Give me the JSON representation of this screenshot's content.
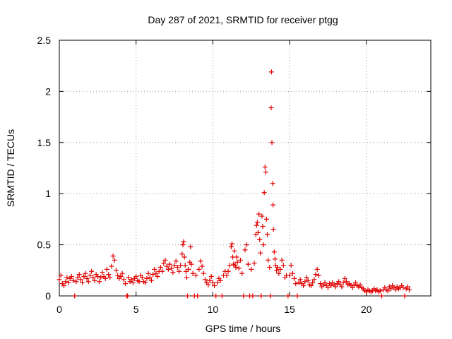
{
  "chart_data": {
    "type": "scatter",
    "title": "Day 287 of 2021, SRMTID for receiver ptgg",
    "xlabel": "GPS time / hours",
    "ylabel": "SRMTID / TECUs",
    "xlim": [
      0,
      24.2
    ],
    "ylim": [
      0,
      2.5
    ],
    "xticks": [
      0,
      5,
      10,
      15,
      20
    ],
    "xtick_labels": [
      "0",
      "5",
      "10",
      "15",
      "20"
    ],
    "yticks": [
      0,
      0.5,
      1,
      1.5,
      2,
      2.5
    ],
    "ytick_labels": [
      "0",
      "0.5",
      "1",
      "1.5",
      "2",
      "2.5"
    ],
    "grid": true,
    "marker": "+",
    "color": "#e00000",
    "series": [
      {
        "name": "SRMTID",
        "points": [
          [
            0.0,
            0.16
          ],
          [
            0.1,
            0.2
          ],
          [
            0.2,
            0.12
          ],
          [
            0.3,
            0.1
          ],
          [
            0.4,
            0.14
          ],
          [
            0.5,
            0.18
          ],
          [
            0.6,
            0.13
          ],
          [
            0.7,
            0.17
          ],
          [
            0.8,
            0.19
          ],
          [
            0.9,
            0.15
          ],
          [
            1.0,
            0.0
          ],
          [
            1.1,
            0.14
          ],
          [
            1.2,
            0.18
          ],
          [
            1.3,
            0.21
          ],
          [
            1.4,
            0.16
          ],
          [
            1.5,
            0.13
          ],
          [
            1.6,
            0.19
          ],
          [
            1.7,
            0.22
          ],
          [
            1.8,
            0.17
          ],
          [
            1.9,
            0.14
          ],
          [
            2.0,
            0.2
          ],
          [
            2.1,
            0.24
          ],
          [
            2.2,
            0.18
          ],
          [
            2.3,
            0.15
          ],
          [
            2.4,
            0.21
          ],
          [
            2.5,
            0.19
          ],
          [
            2.6,
            0.14
          ],
          [
            2.7,
            0.18
          ],
          [
            2.8,
            0.23
          ],
          [
            2.9,
            0.19
          ],
          [
            3.0,
            0.17
          ],
          [
            3.1,
            0.26
          ],
          [
            3.2,
            0.21
          ],
          [
            3.3,
            0.18
          ],
          [
            3.4,
            0.29
          ],
          [
            3.5,
            0.39
          ],
          [
            3.6,
            0.35
          ],
          [
            3.7,
            0.25
          ],
          [
            3.8,
            0.2
          ],
          [
            3.9,
            0.17
          ],
          [
            4.0,
            0.19
          ],
          [
            4.1,
            0.22
          ],
          [
            4.2,
            0.16
          ],
          [
            4.3,
            0.12
          ],
          [
            4.4,
            0.0
          ],
          [
            4.45,
            0.0
          ],
          [
            4.5,
            0.18
          ],
          [
            4.6,
            0.14
          ],
          [
            4.7,
            0.16
          ],
          [
            4.8,
            0.13
          ],
          [
            4.9,
            0.17
          ],
          [
            5.0,
            0.19
          ],
          [
            5.1,
            0.15
          ],
          [
            5.2,
            0.14
          ],
          [
            5.3,
            0.2
          ],
          [
            5.4,
            0.18
          ],
          [
            5.5,
            0.14
          ],
          [
            5.6,
            0.13
          ],
          [
            5.7,
            0.17
          ],
          [
            5.8,
            0.22
          ],
          [
            5.9,
            0.18
          ],
          [
            6.0,
            0.15
          ],
          [
            6.1,
            0.21
          ],
          [
            6.2,
            0.26
          ],
          [
            6.3,
            0.22
          ],
          [
            6.4,
            0.19
          ],
          [
            6.5,
            0.24
          ],
          [
            6.6,
            0.28
          ],
          [
            6.7,
            0.24
          ],
          [
            6.8,
            0.32
          ],
          [
            6.9,
            0.35
          ],
          [
            7.0,
            0.29
          ],
          [
            7.1,
            0.26
          ],
          [
            7.2,
            0.31
          ],
          [
            7.3,
            0.27
          ],
          [
            7.4,
            0.23
          ],
          [
            7.5,
            0.3
          ],
          [
            7.6,
            0.34
          ],
          [
            7.7,
            0.28
          ],
          [
            7.8,
            0.24
          ],
          [
            7.9,
            0.3
          ],
          [
            8.0,
            0.41
          ],
          [
            8.05,
            0.5
          ],
          [
            8.1,
            0.53
          ],
          [
            8.15,
            0.38
          ],
          [
            8.2,
            0.3
          ],
          [
            8.25,
            0.24
          ],
          [
            8.3,
            0.18
          ],
          [
            8.35,
            0.0
          ],
          [
            8.4,
            0.26
          ],
          [
            8.5,
            0.33
          ],
          [
            8.55,
            0.48
          ],
          [
            8.6,
            0.31
          ],
          [
            8.7,
            0.22
          ],
          [
            8.8,
            0.0
          ],
          [
            8.9,
            0.2
          ],
          [
            9.0,
            0.0
          ],
          [
            9.1,
            0.26
          ],
          [
            9.2,
            0.34
          ],
          [
            9.3,
            0.29
          ],
          [
            9.4,
            0.22
          ],
          [
            9.5,
            0.16
          ],
          [
            9.6,
            0.13
          ],
          [
            9.7,
            0.11
          ],
          [
            9.8,
            0.15
          ],
          [
            9.9,
            0.19
          ],
          [
            10.0,
            0.13
          ],
          [
            10.1,
            0.1
          ],
          [
            10.2,
            0.0
          ],
          [
            10.3,
            0.13
          ],
          [
            10.4,
            0.17
          ],
          [
            10.5,
            0.15
          ],
          [
            10.6,
            0.0
          ],
          [
            10.7,
            0.2
          ],
          [
            10.8,
            0.24
          ],
          [
            10.9,
            0.2
          ],
          [
            11.0,
            0.24
          ],
          [
            11.1,
            0.3
          ],
          [
            11.2,
            0.48
          ],
          [
            11.25,
            0.51
          ],
          [
            11.3,
            0.38
          ],
          [
            11.35,
            0.31
          ],
          [
            11.4,
            0.44
          ],
          [
            11.45,
            0.3
          ],
          [
            11.5,
            0.28
          ],
          [
            11.55,
            0.38
          ],
          [
            11.6,
            0.33
          ],
          [
            11.7,
            0.27
          ],
          [
            11.8,
            0.35
          ],
          [
            11.9,
            0.22
          ],
          [
            12.0,
            0.0
          ],
          [
            12.1,
            0.45
          ],
          [
            12.2,
            0.5
          ],
          [
            12.3,
            0.31
          ],
          [
            12.4,
            0.0
          ],
          [
            12.5,
            0.26
          ],
          [
            12.6,
            0.0
          ],
          [
            12.7,
            0.32
          ],
          [
            12.8,
            0.6
          ],
          [
            12.85,
            0.69
          ],
          [
            12.9,
            0.72
          ],
          [
            12.95,
            0.62
          ],
          [
            13.0,
            0.8
          ],
          [
            13.05,
            0.55
          ],
          [
            13.1,
            0.42
          ],
          [
            13.15,
            0.0
          ],
          [
            13.2,
            0.78
          ],
          [
            13.25,
            0.68
          ],
          [
            13.3,
            0.5
          ],
          [
            13.35,
            1.01
          ],
          [
            13.4,
            1.26
          ],
          [
            13.45,
            1.21
          ],
          [
            13.5,
            0.75
          ],
          [
            13.55,
            0.6
          ],
          [
            13.6,
            0.35
          ],
          [
            13.7,
            0.28
          ],
          [
            13.75,
            0.0
          ],
          [
            13.8,
            1.84
          ],
          [
            13.82,
            2.19
          ],
          [
            13.85,
            1.5
          ],
          [
            13.9,
            1.1
          ],
          [
            13.92,
            0.89
          ],
          [
            13.95,
            0.65
          ],
          [
            14.0,
            0.43
          ],
          [
            14.05,
            0.36
          ],
          [
            14.1,
            0.3
          ],
          [
            14.15,
            0.25
          ],
          [
            14.2,
            0.28
          ],
          [
            14.3,
            0.22
          ],
          [
            14.4,
            0.26
          ],
          [
            14.5,
            0.35
          ],
          [
            14.6,
            0.3
          ],
          [
            14.7,
            0.18
          ],
          [
            14.8,
            0.2
          ],
          [
            14.9,
            0.0
          ],
          [
            15.0,
            0.2
          ],
          [
            15.1,
            0.3
          ],
          [
            15.2,
            0.22
          ],
          [
            15.3,
            0.17
          ],
          [
            15.4,
            0.12
          ],
          [
            15.5,
            0.0
          ],
          [
            15.6,
            0.13
          ],
          [
            15.7,
            0.16
          ],
          [
            15.8,
            0.12
          ],
          [
            15.9,
            0.1
          ],
          [
            16.0,
            0.14
          ],
          [
            16.1,
            0.18
          ],
          [
            16.2,
            0.15
          ],
          [
            16.3,
            0.11
          ],
          [
            16.4,
            0.1
          ],
          [
            16.5,
            0.13
          ],
          [
            16.6,
            0.16
          ],
          [
            16.7,
            0.21
          ],
          [
            16.8,
            0.26
          ],
          [
            16.9,
            0.2
          ],
          [
            17.0,
            0.12
          ],
          [
            17.1,
            0.09
          ],
          [
            17.2,
            0.11
          ],
          [
            17.3,
            0.13
          ],
          [
            17.4,
            0.1
          ],
          [
            17.5,
            0.08
          ],
          [
            17.6,
            0.12
          ],
          [
            17.7,
            0.1
          ],
          [
            17.8,
            0.13
          ],
          [
            17.9,
            0.11
          ],
          [
            18.0,
            0.09
          ],
          [
            18.1,
            0.12
          ],
          [
            18.2,
            0.14
          ],
          [
            18.3,
            0.11
          ],
          [
            18.4,
            0.09
          ],
          [
            18.5,
            0.13
          ],
          [
            18.6,
            0.17
          ],
          [
            18.7,
            0.14
          ],
          [
            18.8,
            0.11
          ],
          [
            18.9,
            0.12
          ],
          [
            19.0,
            0.1
          ],
          [
            19.1,
            0.08
          ],
          [
            19.2,
            0.11
          ],
          [
            19.3,
            0.13
          ],
          [
            19.4,
            0.1
          ],
          [
            19.5,
            0.09
          ],
          [
            19.6,
            0.11
          ],
          [
            19.7,
            0.08
          ],
          [
            19.8,
            0.07
          ],
          [
            19.9,
            0.05
          ],
          [
            20.0,
            0.04
          ],
          [
            20.1,
            0.06
          ],
          [
            20.2,
            0.05
          ],
          [
            20.3,
            0.04
          ],
          [
            20.4,
            0.05
          ],
          [
            20.5,
            0.07
          ],
          [
            20.6,
            0.05
          ],
          [
            20.7,
            0.06
          ],
          [
            20.8,
            0.04
          ],
          [
            20.9,
            0.05
          ],
          [
            21.0,
            0.0
          ],
          [
            21.1,
            0.06
          ],
          [
            21.2,
            0.08
          ],
          [
            21.3,
            0.06
          ],
          [
            21.4,
            0.05
          ],
          [
            21.5,
            0.09
          ],
          [
            21.6,
            0.07
          ],
          [
            21.7,
            0.1
          ],
          [
            21.8,
            0.08
          ],
          [
            21.9,
            0.06
          ],
          [
            22.0,
            0.09
          ],
          [
            22.1,
            0.07
          ],
          [
            22.2,
            0.08
          ],
          [
            22.3,
            0.1
          ],
          [
            22.4,
            0.08
          ],
          [
            22.5,
            0.0
          ],
          [
            22.6,
            0.07
          ],
          [
            22.7,
            0.09
          ],
          [
            22.8,
            0.06
          ]
        ]
      }
    ]
  }
}
